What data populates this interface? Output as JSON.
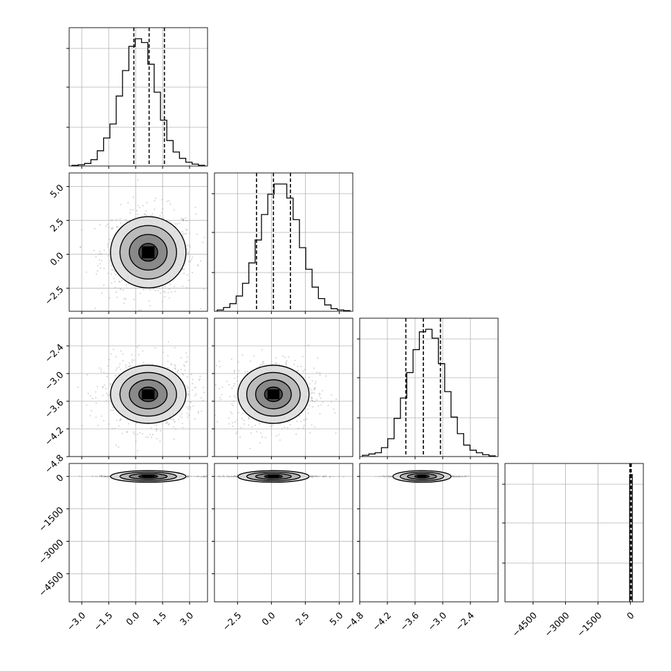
{
  "chart_data": {
    "type": "corner",
    "grid": true,
    "dims": [
      {
        "range": [
          -3.7,
          4.0
        ],
        "ticks": [
          -3.0,
          -1.5,
          0.0,
          1.5,
          3.0
        ],
        "tick_labels": [
          "−3.0",
          "−1.5",
          "0.0",
          "1.5",
          "3.0"
        ],
        "quantiles": [
          -0.1,
          0.75,
          1.6
        ],
        "hist_peak": 1.0,
        "hist": [
          0.005,
          0.01,
          0.02,
          0.05,
          0.12,
          0.22,
          0.33,
          0.55,
          0.75,
          0.94,
          1.0,
          0.97,
          0.8,
          0.58,
          0.36,
          0.2,
          0.11,
          0.06,
          0.03,
          0.015,
          0.005
        ]
      },
      {
        "range": [
          -4.2,
          6.0
        ],
        "ticks": [
          -2.5,
          0.0,
          2.5,
          5.0
        ],
        "tick_labels": [
          "−2.5",
          "0.0",
          "2.5",
          "5.0"
        ],
        "ylabel_ticks": [
          -2.5,
          0.0,
          2.5,
          5.0
        ],
        "ylabel_tick_labels": [
          "−2.5",
          "0.0",
          "2.5",
          "5.0"
        ],
        "quantiles": [
          -1.1,
          0.15,
          1.4
        ],
        "hist": [
          0.01,
          0.03,
          0.06,
          0.12,
          0.22,
          0.38,
          0.56,
          0.76,
          0.92,
          1.0,
          1.0,
          0.89,
          0.72,
          0.5,
          0.33,
          0.19,
          0.1,
          0.05,
          0.02,
          0.01,
          0.005
        ]
      },
      {
        "range": [
          -4.8,
          -1.8
        ],
        "ticks": [
          -4.8,
          -4.2,
          -3.6,
          -3.0,
          -2.4
        ],
        "tick_labels": [
          "−4.8",
          "−4.2",
          "−3.6",
          "−3.0",
          "−2.4"
        ],
        "quantiles": [
          -3.8,
          -3.42,
          -3.05
        ],
        "hist": [
          0.01,
          0.02,
          0.03,
          0.07,
          0.14,
          0.3,
          0.46,
          0.66,
          0.84,
          0.98,
          1.0,
          0.93,
          0.73,
          0.51,
          0.31,
          0.18,
          0.09,
          0.05,
          0.03,
          0.015,
          0.005
        ]
      },
      {
        "range": [
          -5800,
          600
        ],
        "ticks": [
          -4500,
          -3000,
          -1500,
          0
        ],
        "tick_labels": [
          "−4500",
          "−3000",
          "−1500",
          "0"
        ],
        "quantiles": [
          -25,
          5,
          40
        ],
        "hist_bin": [
          -30,
          90
        ],
        "hist": [
          1.0
        ]
      }
    ],
    "samples_center": [
      [
        0.7,
        0.15,
        -3.45,
        0
      ]
    ],
    "contour_levels_sigma": [
      0.5,
      1.0,
      1.5,
      2.0
    ]
  }
}
